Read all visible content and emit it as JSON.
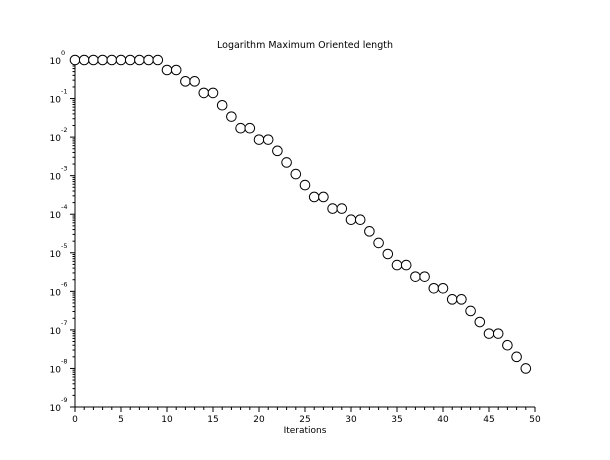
{
  "chart_data": {
    "type": "scatter",
    "title": "Logarithm Maximum Oriented length",
    "xlabel": "Iterations",
    "ylabel": "",
    "xlim": [
      0,
      50
    ],
    "ylim_exponent": [
      -9,
      0
    ],
    "yscale": "log",
    "grid": false,
    "legend": "none",
    "x_ticks": [
      "0",
      "5",
      "10",
      "15",
      "20",
      "25",
      "30",
      "35",
      "40",
      "45",
      "50"
    ],
    "y_tick_base": "10",
    "y_tick_exponents": [
      "0",
      "-1",
      "-2",
      "-3",
      "-4",
      "-5",
      "-6",
      "-7",
      "-8",
      "-9"
    ],
    "marker": "open-circle",
    "series": [
      {
        "x": [
          0,
          1,
          2,
          3,
          4,
          5,
          6,
          7,
          8,
          9,
          10,
          11,
          12,
          13,
          14,
          15,
          16,
          17,
          18,
          19,
          20,
          21,
          22,
          23,
          24,
          25,
          26,
          27,
          28,
          29,
          30,
          31,
          32,
          33,
          34,
          35,
          36,
          37,
          38,
          39,
          40,
          41,
          42,
          43,
          44,
          45,
          46,
          47,
          48,
          49
        ],
        "y": [
          1,
          1,
          1,
          1,
          1,
          1,
          1,
          1,
          1,
          1,
          0.55,
          0.55,
          0.28,
          0.28,
          0.14,
          0.14,
          0.067,
          0.034,
          0.017,
          0.017,
          0.0086,
          0.0086,
          0.0044,
          0.0022,
          0.0011,
          0.00057,
          0.00028,
          0.00028,
          0.00014,
          0.00014,
          7.2e-05,
          7.2e-05,
          3.6e-05,
          1.8e-05,
          9.3e-06,
          4.8e-06,
          4.8e-06,
          2.4e-06,
          2.4e-06,
          1.2e-06,
          1.2e-06,
          6.2e-07,
          6.2e-07,
          3.1e-07,
          1.6e-07,
          8e-08,
          8e-08,
          4e-08,
          2e-08,
          1e-08
        ]
      }
    ],
    "colors": {
      "axis": "#000000",
      "marker_stroke": "#000000",
      "marker_fill": "#ffffff",
      "background": "#ffffff"
    }
  }
}
